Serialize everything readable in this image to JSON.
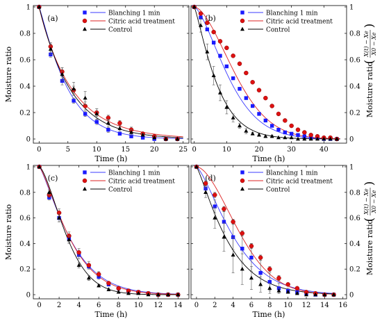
{
  "colors": {
    "blanch": "#1a1aff",
    "citric": "#dd1111",
    "control": "#000000",
    "frame": "#000000",
    "fit_blanch": "#3b3bff",
    "fit_citric": "#dd2222"
  },
  "legend_labels": [
    "Blanching 1 min",
    "Citric acid treatment",
    "Control"
  ],
  "ylabel_left": "Moisture ratio",
  "ylabel_right_num": "X(t) − Xe",
  "ylabel_right_den": "X0 − Xe",
  "chart_data": [
    {
      "panel": "(a)",
      "type": "scatter",
      "xlabel": "Time (h)",
      "ylabel": "Moisture ratio",
      "xlim": [
        -1,
        26
      ],
      "ylim": [
        0,
        1
      ],
      "xticks": [
        0,
        5,
        10,
        15,
        20,
        25
      ],
      "yticks": [
        0,
        0.2,
        0.4,
        0.6,
        0.8,
        1
      ],
      "series": [
        {
          "name": "Blanching 1 min",
          "marker": "square",
          "x": [
            0,
            2,
            4,
            6,
            8,
            10,
            12,
            14,
            16,
            18,
            20,
            22,
            24
          ],
          "y": [
            1,
            0.64,
            0.44,
            0.29,
            0.19,
            0.13,
            0.07,
            0.04,
            0.02,
            0.01,
            0.0,
            0.0,
            0.0
          ],
          "err": [
            0,
            0.02,
            0.03,
            0.02,
            0.02,
            0.02,
            0.02,
            0.01,
            0.01,
            0.01,
            0,
            0,
            0
          ]
        },
        {
          "name": "Citric acid treatment",
          "marker": "circle",
          "x": [
            0,
            2,
            4,
            6,
            8,
            10,
            12,
            14,
            16,
            18,
            20,
            22,
            24
          ],
          "y": [
            1,
            0.7,
            0.51,
            0.37,
            0.25,
            0.2,
            0.16,
            0.12,
            0.07,
            0.04,
            0.02,
            0.0,
            0.0
          ],
          "err": [
            0,
            0.03,
            0.03,
            0.03,
            0.03,
            0.03,
            0.02,
            0.02,
            0.02,
            0.01,
            0.01,
            0,
            0
          ]
        },
        {
          "name": "Control",
          "marker": "triangle",
          "x": [
            0,
            2,
            4,
            6,
            8,
            10,
            12,
            14,
            16,
            18,
            20,
            22,
            24
          ],
          "y": [
            1,
            0.68,
            0.49,
            0.38,
            0.31,
            0.19,
            0.12,
            0.08,
            0.05,
            0.03,
            0.01,
            0.0,
            0.0
          ],
          "err": [
            0,
            0.04,
            0.05,
            0.05,
            0.05,
            0.04,
            0.03,
            0.02,
            0.02,
            0.01,
            0.01,
            0,
            0
          ]
        }
      ],
      "fits": [
        {
          "series": "Blanching 1 min",
          "k": 0.16,
          "n": 1.12,
          "xmax": 25
        },
        {
          "series": "Citric acid treatment",
          "k": 0.18,
          "n": 0.97,
          "xmax": 25
        },
        {
          "series": "Control",
          "k": 0.175,
          "n": 1.02,
          "xmax": 25
        }
      ]
    },
    {
      "panel": "(b)",
      "type": "scatter",
      "xlabel": "Time (h)",
      "ylabel": "Moisture ratio",
      "xlim": [
        -1,
        47
      ],
      "ylim": [
        0,
        1
      ],
      "xticks": [
        0,
        10,
        20,
        30,
        40
      ],
      "yticks": [
        0,
        0.2,
        0.4,
        0.6,
        0.8,
        1
      ],
      "series": [
        {
          "name": "Blanching 1 min",
          "marker": "square",
          "x": [
            0,
            2,
            4,
            6,
            8,
            10,
            12,
            14,
            16,
            18,
            20,
            22,
            24,
            26,
            28,
            30,
            32,
            34,
            36,
            38,
            40,
            42,
            44
          ],
          "y": [
            1,
            0.92,
            0.83,
            0.73,
            0.63,
            0.55,
            0.46,
            0.38,
            0.31,
            0.25,
            0.19,
            0.14,
            0.1,
            0.07,
            0.05,
            0.04,
            0.03,
            0.02,
            0.01,
            0.01,
            0.0,
            0.0,
            0.0
          ],
          "err": []
        },
        {
          "name": "Citric acid treatment",
          "marker": "circle",
          "x": [
            0,
            2,
            4,
            6,
            8,
            10,
            12,
            14,
            16,
            18,
            20,
            22,
            24,
            26,
            28,
            30,
            32,
            34,
            36,
            38,
            40,
            42,
            44
          ],
          "y": [
            1,
            0.95,
            0.88,
            0.81,
            0.74,
            0.69,
            0.63,
            0.57,
            0.5,
            0.43,
            0.37,
            0.31,
            0.25,
            0.19,
            0.14,
            0.1,
            0.07,
            0.05,
            0.03,
            0.02,
            0.01,
            0.01,
            0.0
          ],
          "err": []
        },
        {
          "name": "Control",
          "marker": "triangle",
          "x": [
            0,
            2,
            4,
            6,
            8,
            10,
            12,
            14,
            16,
            18,
            20,
            22,
            24,
            26,
            28,
            30,
            32,
            34,
            36,
            38,
            40,
            42,
            44
          ],
          "y": [
            1,
            0.86,
            0.66,
            0.48,
            0.35,
            0.24,
            0.16,
            0.1,
            0.06,
            0.04,
            0.03,
            0.02,
            0.02,
            0.01,
            0.01,
            0.01,
            0.0,
            0.0,
            0.0,
            0.0,
            0.0,
            0.0,
            0.0
          ],
          "err": [
            0,
            0.05,
            0.06,
            0.07,
            0.06,
            0.05,
            0.03,
            0.02,
            0.02,
            0.01,
            0.01,
            0.01,
            0.01,
            0,
            0,
            0,
            0,
            0,
            0,
            0,
            0,
            0,
            0
          ]
        }
      ],
      "fits": [
        {
          "series": "Blanching 1 min",
          "k": 0.022,
          "n": 1.5,
          "xmax": 45
        },
        {
          "series": "Citric acid treatment",
          "k": 0.009,
          "n": 1.72,
          "xmax": 45
        },
        {
          "series": "Control",
          "k": 0.085,
          "n": 1.2,
          "xmax": 45
        }
      ]
    },
    {
      "panel": "(c)",
      "type": "scatter",
      "xlabel": "Time (h)",
      "ylabel": "Moisture ratio",
      "xlim": [
        -0.6,
        15.1
      ],
      "ylim": [
        0,
        1
      ],
      "xticks": [
        0,
        2,
        4,
        6,
        8,
        10,
        12,
        14
      ],
      "yticks": [
        0,
        0.2,
        0.4,
        0.6,
        0.8,
        1
      ],
      "series": [
        {
          "name": "Blanching 1 min",
          "marker": "square",
          "x": [
            0,
            1,
            2,
            3,
            4,
            5,
            6,
            7,
            8,
            9,
            10,
            11,
            12,
            13,
            14
          ],
          "y": [
            1,
            0.76,
            0.6,
            0.44,
            0.31,
            0.22,
            0.14,
            0.08,
            0.05,
            0.03,
            0.02,
            0.01,
            0.0,
            0.0,
            0.0
          ],
          "err": [
            0,
            0.02,
            0.03,
            0.03,
            0.03,
            0.02,
            0.02,
            0.01,
            0.01,
            0.01,
            0,
            0,
            0,
            0,
            0
          ]
        },
        {
          "name": "Citric acid treatment",
          "marker": "circle",
          "x": [
            0,
            1,
            2,
            3,
            4,
            5,
            6,
            7,
            8,
            9,
            10,
            11,
            12,
            13,
            14
          ],
          "y": [
            1,
            0.78,
            0.64,
            0.46,
            0.33,
            0.23,
            0.16,
            0.09,
            0.05,
            0.03,
            0.02,
            0.01,
            0.0,
            0.0,
            0.0
          ],
          "err": [
            0,
            0.02,
            0.03,
            0.03,
            0.03,
            0.03,
            0.02,
            0.01,
            0.01,
            0.01,
            0,
            0,
            0,
            0,
            0
          ]
        },
        {
          "name": "Control",
          "marker": "triangle",
          "x": [
            0,
            1,
            2,
            3,
            4,
            5,
            6,
            7,
            8,
            9,
            10,
            11,
            12,
            13,
            14
          ],
          "y": [
            1,
            0.8,
            0.6,
            0.43,
            0.23,
            0.13,
            0.07,
            0.04,
            0.02,
            0.01,
            0.01,
            0.0,
            0.0,
            0.0,
            0.0
          ],
          "err": [
            0,
            0.02,
            0.03,
            0.03,
            0.02,
            0.02,
            0.01,
            0.01,
            0.01,
            0,
            0,
            0,
            0,
            0,
            0
          ]
        }
      ],
      "fits": [
        {
          "series": "Blanching 1 min",
          "k": 0.2,
          "n": 1.25,
          "xmax": 14
        },
        {
          "series": "Citric acid treatment",
          "k": 0.19,
          "n": 1.3,
          "xmax": 14
        },
        {
          "series": "Control",
          "k": 0.17,
          "n": 1.5,
          "xmax": 14
        }
      ]
    },
    {
      "panel": "(d)",
      "type": "scatter",
      "xlabel": "Time (h)",
      "ylabel": "Moisture ratio",
      "xlim": [
        -0.6,
        16.4
      ],
      "ylim": [
        0,
        1
      ],
      "xticks": [
        0,
        2,
        4,
        6,
        8,
        10,
        12,
        14,
        16
      ],
      "yticks": [
        0,
        0.2,
        0.4,
        0.6,
        0.8,
        1
      ],
      "series": [
        {
          "name": "Blanching 1 min",
          "marker": "square",
          "x": [
            0,
            1,
            2,
            3,
            4,
            5,
            6,
            7,
            8,
            9,
            10,
            11,
            12,
            13,
            14,
            15
          ],
          "y": [
            1,
            0.83,
            0.69,
            0.57,
            0.45,
            0.36,
            0.29,
            0.17,
            0.1,
            0.05,
            0.03,
            0.02,
            0.01,
            0.0,
            0.0,
            0.0
          ],
          "err": [
            0,
            0.03,
            0.05,
            0.08,
            0.1,
            0.11,
            0.11,
            0.1,
            0.07,
            0.04,
            0.02,
            0.01,
            0.01,
            0,
            0,
            0
          ]
        },
        {
          "name": "Citric acid treatment",
          "marker": "circle",
          "x": [
            0,
            1,
            2,
            3,
            4,
            5,
            6,
            7,
            8,
            9,
            10,
            11,
            12,
            13,
            14,
            15
          ],
          "y": [
            1,
            0.87,
            0.78,
            0.67,
            0.57,
            0.48,
            0.38,
            0.29,
            0.2,
            0.13,
            0.08,
            0.05,
            0.02,
            0.01,
            0.0,
            0.0
          ],
          "err": [
            0,
            0.02,
            0.02,
            0.02,
            0.02,
            0.02,
            0.02,
            0.02,
            0.02,
            0.02,
            0.01,
            0.01,
            0.01,
            0,
            0,
            0
          ]
        },
        {
          "name": "Control",
          "marker": "triangle",
          "x": [
            0,
            1,
            2,
            3,
            4,
            5,
            6,
            7,
            8,
            9,
            10,
            11,
            12,
            13,
            14,
            15
          ],
          "y": [
            1,
            0.8,
            0.6,
            0.45,
            0.31,
            0.2,
            0.13,
            0.08,
            0.05,
            0.03,
            0.02,
            0.01,
            0.0,
            0.0,
            0.0,
            0.0
          ],
          "err": [
            0,
            0.04,
            0.08,
            0.11,
            0.14,
            0.12,
            0.09,
            0.06,
            0.04,
            0.02,
            0.01,
            0.01,
            0,
            0,
            0,
            0
          ]
        }
      ],
      "fits": [
        {
          "series": "Blanching 1 min",
          "k": 0.12,
          "n": 1.35,
          "xmax": 15
        },
        {
          "series": "Citric acid treatment",
          "k": 0.048,
          "n": 1.75,
          "xmax": 15
        },
        {
          "series": "Control",
          "k": 0.2,
          "n": 1.2,
          "xmax": 15
        }
      ]
    }
  ]
}
